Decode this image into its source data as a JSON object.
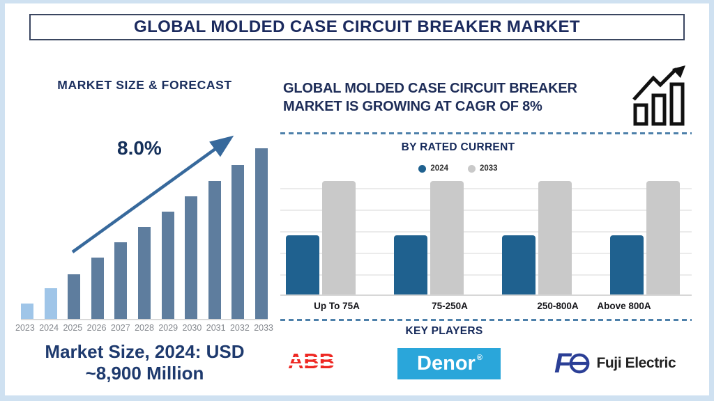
{
  "banner": {
    "title": "GLOBAL MOLDED CASE CIRCUIT BREAKER MARKET"
  },
  "left_panel": {
    "heading": "MARKET SIZE & FORECAST",
    "cagr_label": "8.0%",
    "caption_line1": "Market Size, 2024: USD",
    "caption_line2": "~8,900 Million"
  },
  "right_panel": {
    "heading_line1": "GLOBAL MOLDED CASE CIRCUIT BREAKER",
    "heading_line2": "MARKET IS GROWING AT CAGR OF 8%",
    "rated_current_title": "BY RATED CURRENT",
    "legend": [
      {
        "label": "2024",
        "color": "#1f618f"
      },
      {
        "label": "2033",
        "color": "#c9c9c9"
      }
    ],
    "key_players_title": "KEY PLAYERS",
    "players": {
      "abb": "ABB",
      "denor": "Denor",
      "denor_reg": "®",
      "fuji_f": "F",
      "fuji_text": "Fuji Electric"
    }
  },
  "icons": {
    "growth_trend": "bar-chart-with-up-arrow-icon",
    "trend_arrow": "upward-trend-arrow-icon",
    "legend_dot": "filled-circle",
    "fuji_e_mark": "fuji-electric-e-circle-icon"
  },
  "colors": {
    "navy_text": "#1b2f5e",
    "bar_light": "#9fc5e8",
    "bar_dark": "#5e7d9e",
    "arrow_blue": "#37699c",
    "divider_blue": "#4d80aa",
    "blue_2024": "#1f618f",
    "gray_2033": "#c9c9c9",
    "abb_red": "#ee2722",
    "denor_blue": "#2aa6da",
    "fuji_navy": "#2b3f96",
    "frame_blue": "#cfe1f1",
    "year_label_gray": "#84888e"
  },
  "chart_data": [
    {
      "type": "bar",
      "title": "MARKET SIZE & FORECAST",
      "categories": [
        "2023",
        "2024",
        "2025",
        "2026",
        "2027",
        "2028",
        "2029",
        "2030",
        "2031",
        "2032",
        "2033"
      ],
      "values": [
        9,
        18,
        26,
        36,
        45,
        54,
        63,
        72,
        81,
        90,
        100
      ],
      "units": "relative bar height, % of 2033 bar (no numeric axis shown)",
      "annotation": "8.0%",
      "highlight_first_n": 2,
      "note": "2023 and 2024 bars light blue, 2025-2033 steel blue, upward trend arrow labeled 8.0%",
      "caption": "Market Size, 2024: USD ~8,900 Million",
      "xlabel": "",
      "ylabel": "",
      "grid": false
    },
    {
      "type": "bar",
      "title": "BY RATED CURRENT",
      "categories": [
        "Up To 75A",
        "75-250A",
        "250-800A",
        "Above 800A"
      ],
      "series": [
        {
          "name": "2024",
          "color": "#1f618f",
          "values": [
            52,
            52,
            52,
            52
          ]
        },
        {
          "name": "2033",
          "color": "#c9c9c9",
          "values": [
            100,
            100,
            100,
            100
          ]
        }
      ],
      "units": "relative bar height, % of tallest (2033) bar (no numeric axis shown)",
      "grid": true,
      "legend_position": "top",
      "xlabel": "",
      "ylabel": ""
    }
  ]
}
